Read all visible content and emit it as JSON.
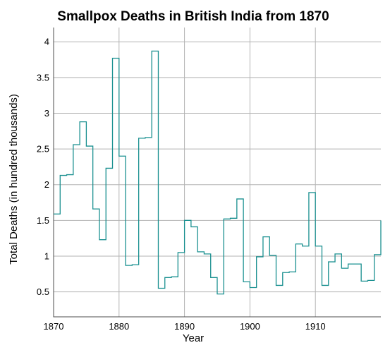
{
  "chart_data": {
    "type": "line",
    "step": true,
    "title": "Smallpox Deaths in British India from 1870",
    "xlabel": "Year",
    "ylabel": "Total Deaths (in hundred thousands)",
    "xlim": [
      1870,
      1920
    ],
    "ylim": [
      0.15,
      4.2
    ],
    "xticks": [
      1870,
      1880,
      1890,
      1900,
      1910
    ],
    "yticks": [
      0.5,
      1,
      1.5,
      2,
      2.5,
      3,
      3.5,
      4
    ],
    "grid": true,
    "line_color": "#1a9090",
    "series": [
      {
        "x": [
          1870,
          1871,
          1872,
          1873,
          1874,
          1875,
          1876,
          1877,
          1878,
          1879,
          1880,
          1881,
          1882,
          1883,
          1884,
          1885,
          1886,
          1887,
          1888,
          1889,
          1890,
          1891,
          1892,
          1893,
          1894,
          1895,
          1896,
          1897,
          1898,
          1899,
          1900,
          1901,
          1902,
          1903,
          1904,
          1905,
          1906,
          1907,
          1908,
          1909,
          1910,
          1911,
          1912,
          1913,
          1914,
          1915,
          1916,
          1917,
          1918,
          1919,
          1920
        ],
        "values": [
          1.59,
          2.13,
          2.14,
          2.56,
          2.88,
          2.54,
          1.66,
          1.23,
          2.23,
          3.77,
          2.4,
          0.87,
          0.88,
          2.65,
          2.66,
          3.87,
          0.55,
          0.7,
          0.71,
          1.05,
          1.5,
          1.41,
          1.06,
          1.03,
          0.7,
          0.47,
          1.52,
          1.53,
          1.8,
          0.64,
          0.56,
          0.99,
          1.27,
          1.01,
          0.59,
          0.77,
          0.78,
          1.17,
          1.14,
          1.89,
          1.14,
          0.59,
          0.92,
          1.03,
          0.83,
          0.89,
          0.89,
          0.65,
          0.66,
          1.02,
          1.5
        ]
      }
    ]
  }
}
